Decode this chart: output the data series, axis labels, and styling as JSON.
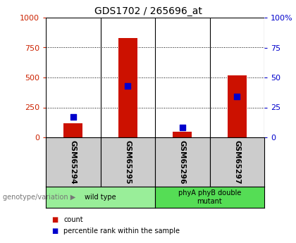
{
  "title": "GDS1702 / 265696_at",
  "samples": [
    "GSM65294",
    "GSM65295",
    "GSM65296",
    "GSM65297"
  ],
  "counts": [
    120,
    830,
    50,
    520
  ],
  "percentiles": [
    17,
    43,
    8,
    34
  ],
  "groups": [
    {
      "label": "wild type",
      "indices": [
        0,
        1
      ],
      "color": "#99ee99"
    },
    {
      "label": "phyA phyB double\nmutant",
      "indices": [
        2,
        3
      ],
      "color": "#55dd55"
    }
  ],
  "ylim_left": [
    0,
    1000
  ],
  "ylim_right": [
    0,
    100
  ],
  "yticks_left": [
    0,
    250,
    500,
    750,
    1000
  ],
  "yticks_right": [
    0,
    25,
    50,
    75,
    100
  ],
  "bar_color": "#cc1100",
  "pct_color": "#0000cc",
  "left_tick_color": "#cc2200",
  "right_tick_color": "#0000cc",
  "bg_color": "#ffffff",
  "sample_box_color": "#cccccc",
  "genotype_label": "genotype/variation",
  "legend_count": "count",
  "legend_pct": "percentile rank within the sample"
}
